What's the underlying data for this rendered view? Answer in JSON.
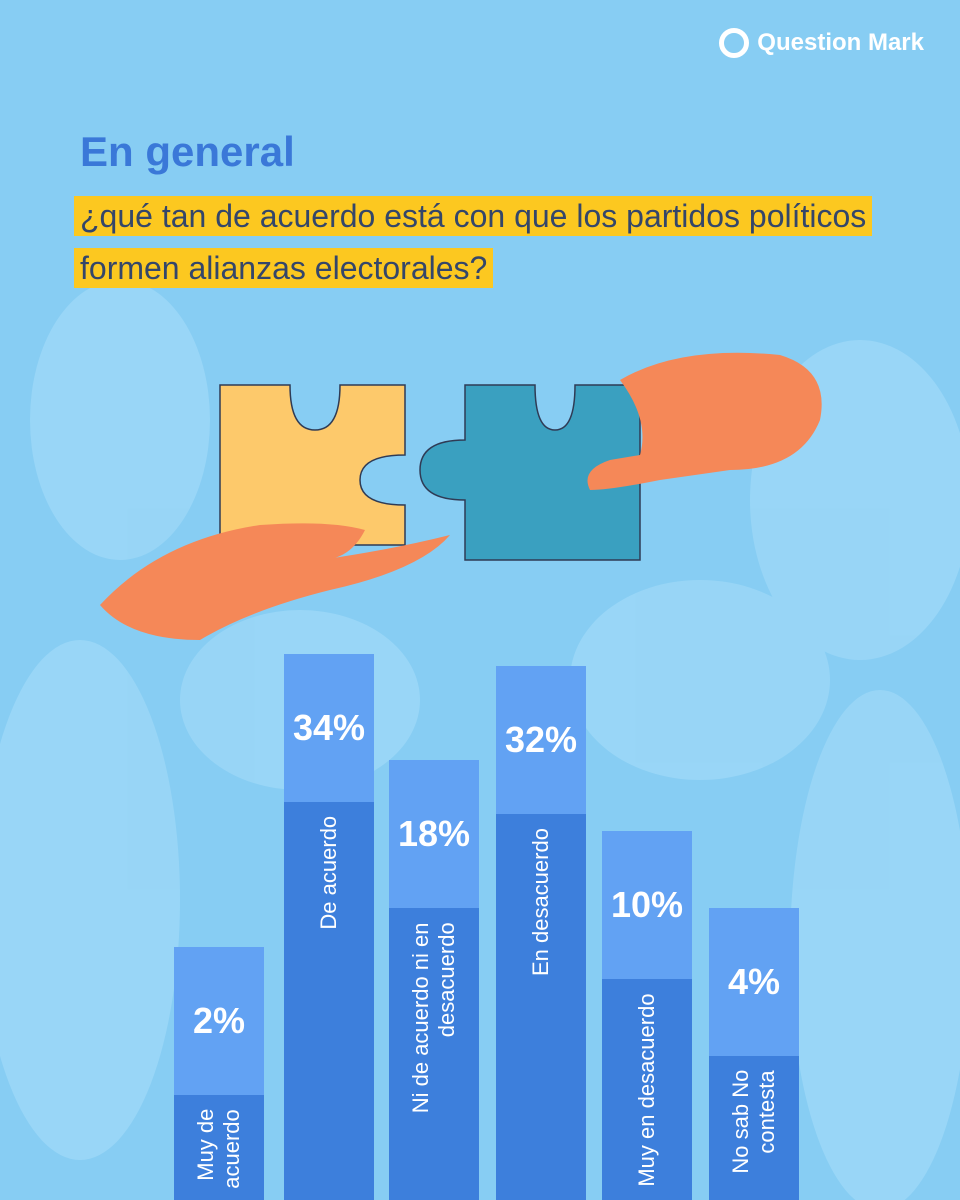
{
  "brand": "Question Mark",
  "chart_data": {
    "type": "bar",
    "title": "En general",
    "subtitle": "¿qué tan de acuerdo está con que los partidos políticos formen alianzas electorales?",
    "categories": [
      "Muy de acuerdo",
      "De acuerdo",
      "Ni de acuerdo ni en desacuerdo",
      "En desacuerdo",
      "Muy en desacuerdo",
      "No sab No contesta"
    ],
    "values": [
      2,
      34,
      18,
      32,
      10,
      4
    ],
    "value_labels": [
      "2%",
      "34%",
      "18%",
      "32%",
      "10%",
      "4%"
    ],
    "color": "#3d7fdc",
    "label_color": "#62a2f3"
  }
}
